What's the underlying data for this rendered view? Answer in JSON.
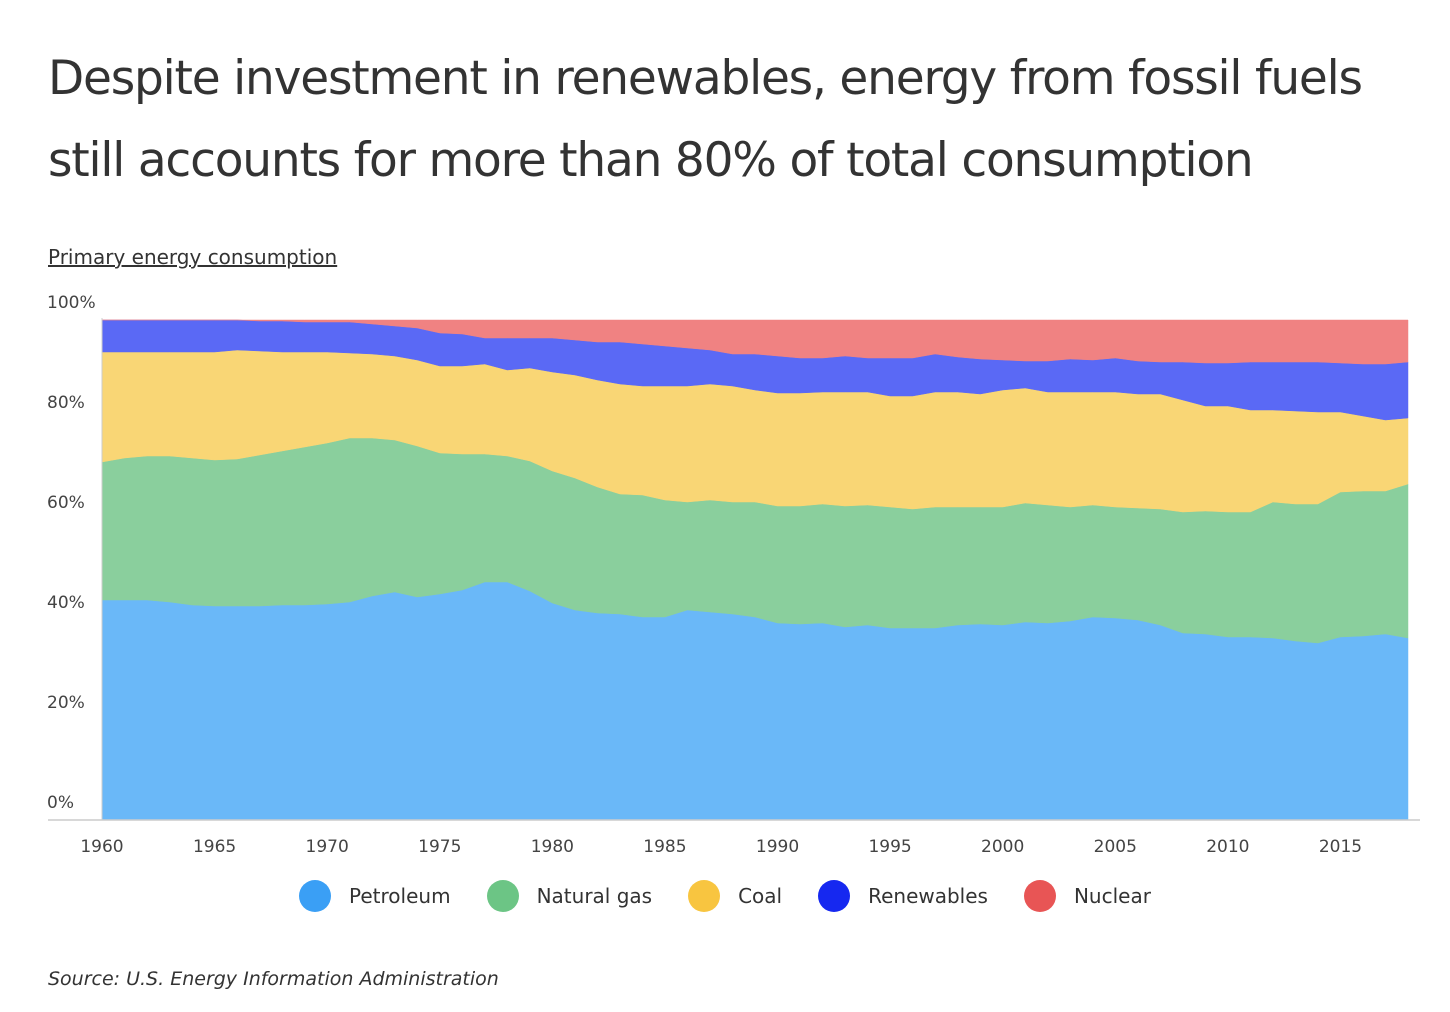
{
  "title_line1": "Despite investment in renewables, energy from fossil fuels",
  "title_line2": "still accounts for  more than 80% of total consumption",
  "subtitle": "Primary energy consumption",
  "source": "Source:  U.S. Energy Information Administration",
  "chart_data": {
    "type": "area",
    "stacked": true,
    "ylabel": "",
    "xlabel": "",
    "ylim": [
      0,
      100
    ],
    "xlim": [
      1960,
      2018
    ],
    "y_ticks": [
      "0%",
      "20%",
      "40%",
      "60%",
      "80%",
      "100%"
    ],
    "x_ticks": [
      "1960",
      "1965",
      "1970",
      "1975",
      "1980",
      "1985",
      "1990",
      "1995",
      "2000",
      "2005",
      "2010",
      "2015"
    ],
    "legend_position": "bottom",
    "grid": false,
    "x": [
      1960,
      1961,
      1962,
      1963,
      1964,
      1965,
      1966,
      1967,
      1968,
      1969,
      1970,
      1971,
      1972,
      1973,
      1974,
      1975,
      1976,
      1977,
      1978,
      1979,
      1980,
      1981,
      1982,
      1983,
      1984,
      1985,
      1986,
      1987,
      1988,
      1989,
      1990,
      1991,
      1992,
      1993,
      1994,
      1995,
      1996,
      1997,
      1998,
      1999,
      2000,
      2001,
      2002,
      2003,
      2004,
      2005,
      2006,
      2007,
      2008,
      2009,
      2010,
      2011,
      2012,
      2013,
      2014,
      2015,
      2016,
      2017,
      2018
    ],
    "series": [
      {
        "name": "Petroleum",
        "color": "#6ab8f8",
        "legend_color": "#3a9ff5",
        "values": [
          44,
          44,
          44,
          43.6,
          43,
          42.8,
          42.8,
          42.8,
          43,
          43,
          43.2,
          43.6,
          44.8,
          45.6,
          44.6,
          45.2,
          46,
          47.6,
          47.6,
          45.8,
          43.4,
          42,
          41.4,
          41.2,
          40.6,
          40.6,
          42,
          41.6,
          41.2,
          40.6,
          39.4,
          39.2,
          39.4,
          38.6,
          39,
          38.4,
          38.4,
          38.4,
          39,
          39.2,
          39,
          39.6,
          39.4,
          39.8,
          40.6,
          40.4,
          40,
          39,
          37.4,
          37.2,
          36.6,
          36.6,
          36.4,
          35.8,
          35.4,
          36.6,
          36.8,
          37.2,
          36.4
        ]
      },
      {
        "name": "Natural gas",
        "color": "#8acf9d",
        "legend_color": "#6cc585",
        "values": [
          27.6,
          28.4,
          28.8,
          29.2,
          29.4,
          29.2,
          29.4,
          30.2,
          30.8,
          31.6,
          32.2,
          32.8,
          31.6,
          30.4,
          30.2,
          28.2,
          27.2,
          25.6,
          25.2,
          26,
          26.4,
          26.4,
          25.2,
          24,
          24.4,
          23.4,
          21.6,
          22.4,
          22.4,
          23,
          23.4,
          23.6,
          23.8,
          24.2,
          24,
          24.2,
          23.8,
          24.2,
          23.6,
          23.4,
          23.6,
          23.8,
          23.6,
          22.8,
          22.4,
          22.2,
          22.4,
          23.2,
          24.2,
          24.6,
          25,
          25,
          27.2,
          27.4,
          27.8,
          29,
          29,
          28.6,
          30.8
        ]
      },
      {
        "name": "Coal",
        "color": "#f9d675",
        "legend_color": "#f8c540",
        "values": [
          22,
          21.2,
          20.8,
          20.8,
          21.2,
          21.6,
          21.8,
          20.8,
          19.8,
          19,
          18.2,
          17,
          16.8,
          16.8,
          17.2,
          17.4,
          17.6,
          18,
          17.2,
          18.6,
          19.8,
          20.6,
          21.4,
          22,
          21.8,
          22.8,
          23.2,
          23.2,
          23.2,
          22.4,
          22.6,
          22.6,
          22.4,
          22.8,
          22.6,
          22.2,
          22.6,
          23,
          23,
          22.6,
          23.4,
          23,
          22.6,
          23,
          22.6,
          23,
          22.8,
          23,
          22.4,
          21,
          21.2,
          20.4,
          18.4,
          18.6,
          18.4,
          16,
          15,
          14.2,
          13.2
        ]
      },
      {
        "name": "Renewables",
        "color": "#5a69f5",
        "legend_color": "#1628f0",
        "values": [
          6.4,
          6.4,
          6.4,
          6.4,
          6.4,
          6.4,
          6,
          6,
          6.2,
          6,
          6,
          6.2,
          6,
          6,
          6.4,
          6.6,
          6.4,
          5.2,
          6.4,
          6,
          6.8,
          7,
          7.6,
          8.4,
          8.4,
          8,
          7.6,
          6.8,
          6.4,
          7.2,
          7.4,
          7,
          6.8,
          7.2,
          6.8,
          7.6,
          7.6,
          7.6,
          7,
          7,
          6,
          5.4,
          6.2,
          6.6,
          6.4,
          6.8,
          6.6,
          6.4,
          7.6,
          8.6,
          8.6,
          9.6,
          9.6,
          9.8,
          10,
          9.8,
          10.4,
          11.2,
          11.2
        ]
      },
      {
        "name": "Nuclear",
        "color": "#f08282",
        "legend_color": "#e85555",
        "values": [
          0,
          0,
          0,
          0,
          0,
          0,
          0,
          0.2,
          0.2,
          0.4,
          0.4,
          0.4,
          0.8,
          1.2,
          1.6,
          2.6,
          2.8,
          3.6,
          3.6,
          3.6,
          3.6,
          4,
          4.4,
          4.4,
          4.8,
          5.2,
          5.6,
          6,
          6.8,
          6.8,
          7.2,
          7.6,
          7.6,
          7.2,
          7.6,
          7.6,
          7.6,
          6.8,
          7.4,
          7.8,
          8,
          8.2,
          8.2,
          7.8,
          8,
          7.6,
          8.2,
          8.4,
          8.4,
          8.6,
          8.6,
          8.4,
          8.4,
          8.4,
          8.4,
          8.6,
          8.8,
          8.8,
          8.4
        ]
      }
    ]
  }
}
